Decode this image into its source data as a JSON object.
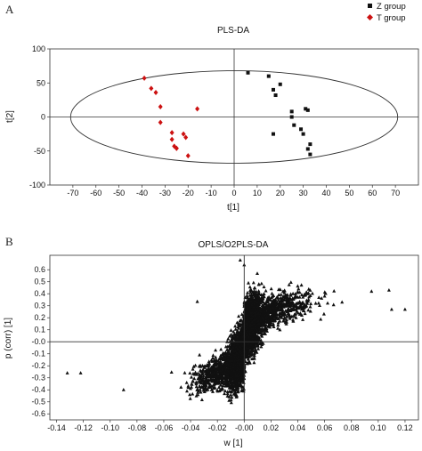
{
  "chart_data": [
    {
      "panel": "A",
      "type": "scatter",
      "title": "PLS-DA",
      "xlabel": "t[1]",
      "ylabel": "t[2]",
      "xlim": [
        -80,
        80
      ],
      "ylim": [
        -100,
        100
      ],
      "xticks": [
        -70,
        -60,
        -50,
        -40,
        -30,
        -20,
        -10,
        0,
        10,
        20,
        30,
        40,
        50,
        60,
        70
      ],
      "yticks": [
        -100,
        -50,
        0,
        50,
        100
      ],
      "ellipse": {
        "rx": 71,
        "ry": 68
      },
      "legend_position": "top-right",
      "colors": {
        "Z": "#111111",
        "T": "#cc1111"
      },
      "series": [
        {
          "name": "Z group",
          "marker": "square",
          "points": [
            [
              6,
              65
            ],
            [
              15,
              60
            ],
            [
              17,
              40
            ],
            [
              20,
              48
            ],
            [
              18,
              32
            ],
            [
              25,
              8
            ],
            [
              25,
              0
            ],
            [
              26,
              -12
            ],
            [
              29,
              -18
            ],
            [
              31,
              12
            ],
            [
              32,
              10
            ],
            [
              30,
              -25
            ],
            [
              33,
              -40
            ],
            [
              32,
              -47
            ],
            [
              33,
              -55
            ],
            [
              17,
              -25
            ]
          ]
        },
        {
          "name": "T group",
          "marker": "diamond",
          "points": [
            [
              -39,
              57
            ],
            [
              -36,
              42
            ],
            [
              -34,
              36
            ],
            [
              -32,
              15
            ],
            [
              -32,
              -8
            ],
            [
              -16,
              12
            ],
            [
              -27,
              -23
            ],
            [
              -27,
              -33
            ],
            [
              -26,
              -43
            ],
            [
              -25,
              -46
            ],
            [
              -22,
              -25
            ],
            [
              -21,
              -30
            ],
            [
              -20,
              -57
            ],
            [
              -25,
              -46
            ]
          ]
        }
      ]
    },
    {
      "panel": "B",
      "type": "scatter",
      "title": "OPLS/O2PLS-DA",
      "xlabel": "w [1]",
      "ylabel": "p (corr) [1]",
      "xlim": [
        -0.145,
        0.13
      ],
      "ylim": [
        -0.65,
        0.72
      ],
      "xticks": [
        "-0.14",
        "-0.12",
        "-0.10",
        "-0.08",
        "-0.06",
        "-0.04",
        "-0.02",
        "-0.00",
        "0.02",
        "0.04",
        "0.06",
        "0.08",
        "0.10",
        "0.12"
      ],
      "yticks": [
        "-0.6",
        "-0.5",
        "-0.4",
        "-0.3",
        "-0.2",
        "-0.1",
        "-0.0",
        "0.1",
        "0.2",
        "0.3",
        "0.4",
        "0.5",
        "0.6"
      ],
      "marker": "triangle",
      "notable_points": [
        [
          -0.132,
          -0.26
        ],
        [
          -0.122,
          -0.26
        ],
        [
          -0.09,
          -0.4
        ],
        [
          -0.035,
          0.335
        ],
        [
          0.095,
          0.42
        ],
        [
          0.108,
          0.43
        ],
        [
          0.12,
          0.27
        ],
        [
          0.11,
          0.27
        ],
        [
          0.073,
          0.33
        ],
        [
          0.06,
          0.38
        ],
        [
          -0.003,
          0.68
        ],
        [
          0.0,
          0.64
        ]
      ],
      "point_count": 4200
    }
  ]
}
